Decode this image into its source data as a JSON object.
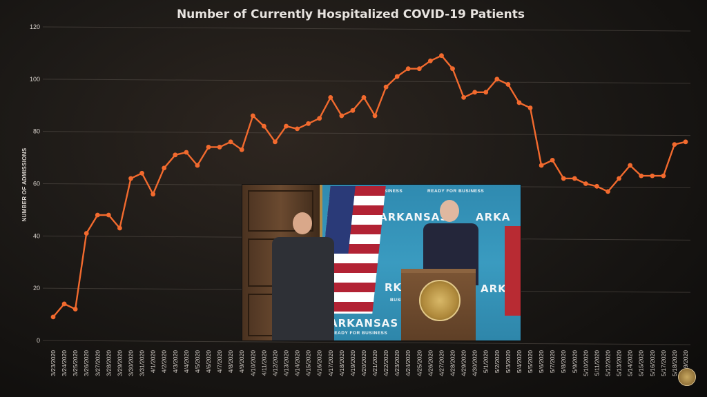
{
  "chart_data": {
    "type": "line",
    "title": "Number of Currently Hospitalized COVID-19 Patients",
    "ylabel": "NUMBER OF ADMISSIONS",
    "xlabel": "",
    "ylim": [
      0,
      120
    ],
    "yticks": [
      0,
      20,
      40,
      60,
      80,
      100,
      120
    ],
    "grid": true,
    "x": [
      "3/23/2020",
      "3/24/2020",
      "3/25/2020",
      "3/26/2020",
      "3/27/2020",
      "3/28/2020",
      "3/29/2020",
      "3/30/2020",
      "3/31/2020",
      "4/1/2020",
      "4/2/2020",
      "4/3/2020",
      "4/4/2020",
      "4/5/2020",
      "4/6/2020",
      "4/7/2020",
      "4/8/2020",
      "4/9/2020",
      "4/10/2020",
      "4/11/2020",
      "4/12/2020",
      "4/13/2020",
      "4/14/2020",
      "4/15/2020",
      "4/16/2020",
      "4/17/2020",
      "4/18/2020",
      "4/19/2020",
      "4/20/2020",
      "4/21/2020",
      "4/22/2020",
      "4/23/2020",
      "4/24/2020",
      "4/25/2020",
      "4/26/2020",
      "4/27/2020",
      "4/28/2020",
      "4/29/2020",
      "4/30/2020",
      "5/1/2020",
      "5/2/2020",
      "5/3/2020",
      "5/4/2020",
      "5/5/2020",
      "5/6/2020",
      "5/7/2020",
      "5/8/2020",
      "5/9/2020",
      "5/10/2020",
      "5/11/2020",
      "5/12/2020",
      "5/13/2020",
      "5/14/2020",
      "5/15/2020",
      "5/16/2020",
      "5/17/2020",
      "5/18/2020",
      "5/19/2020"
    ],
    "series": [
      {
        "name": "",
        "color": "#f26a2e",
        "values": [
          9,
          14,
          12,
          41,
          48,
          48,
          43,
          62,
          64,
          56,
          66,
          71,
          72,
          67,
          74,
          74,
          76,
          73,
          86,
          82,
          76,
          82,
          81,
          83,
          85,
          93,
          86,
          88,
          93,
          86,
          97,
          101,
          104,
          104,
          107,
          109,
          104,
          93,
          95,
          95,
          100,
          98,
          91,
          89,
          67,
          69,
          62,
          62,
          60,
          59,
          57,
          62,
          67,
          63,
          63,
          63,
          75,
          76
        ]
      }
    ]
  },
  "inset": {
    "backdrop_word": "ARKANSAS",
    "backdrop_word_2": "ARKANSAS",
    "backdrop_word_3": "ARKANSAS",
    "backdrop_word_cut": "ARKA",
    "backdrop_word_cut_2": "RKA",
    "backdrop_word_cut_3": "ARKA",
    "backdrop_tag": "READY FOR BUSINESS",
    "backdrop_tag_2": "READY FOR BUSINESS",
    "backdrop_tag_3": "READY FOR BUSINESS",
    "backdrop_tag_4": "BUSINESS"
  }
}
